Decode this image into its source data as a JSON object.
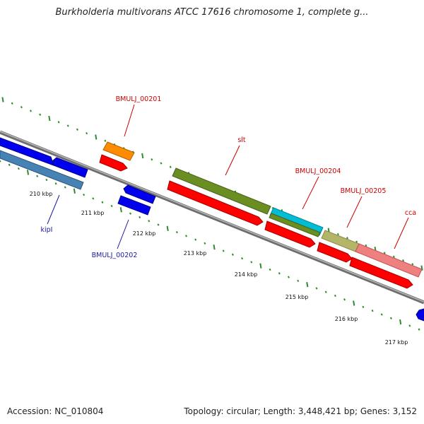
{
  "title": "Burkholderia multivorans ATCC 17616 chromosome 1, complete g...",
  "footer": {
    "accession": "Accession: NC_010804",
    "summary": "Topology: circular; Length: 3,448,421 bp; Genes: 3,152"
  },
  "colors": {
    "backbone": "#7a7a7a",
    "tick": "#2e8b2e",
    "label_red": "#cc0000",
    "label_blue": "#1a1aa0"
  },
  "scale_labels": [
    "210 kbp",
    "211 kbp",
    "212 kbp",
    "213 kbp",
    "214 kbp",
    "215 kbp",
    "216 kbp",
    "217 kbp"
  ],
  "gene_labels": [
    {
      "text": "BMULJ_00201",
      "color": "red"
    },
    {
      "text": "slt",
      "color": "red"
    },
    {
      "text": "BMULJ_00204",
      "color": "red"
    },
    {
      "text": "BMULJ_00205",
      "color": "red"
    },
    {
      "text": "cca",
      "color": "red"
    },
    {
      "text": "kipI",
      "color": "blue"
    },
    {
      "text": "BMULJ_00202",
      "color": "blue"
    }
  ],
  "features": [
    {
      "track": "outer-cds",
      "color": "#ff8c00"
    },
    {
      "track": "outer-cds",
      "color": "#6b8e23"
    },
    {
      "track": "outer-cds",
      "color": "#00bcd4"
    },
    {
      "track": "outer-cds",
      "color": "#b5b56a"
    },
    {
      "track": "outer-cds",
      "color": "#ee8080"
    },
    {
      "track": "forward-arrow",
      "color": "#ff0000"
    },
    {
      "track": "reverse-arrow",
      "color": "#0000ee"
    },
    {
      "track": "inner-feature",
      "color": "#4682b4"
    }
  ]
}
